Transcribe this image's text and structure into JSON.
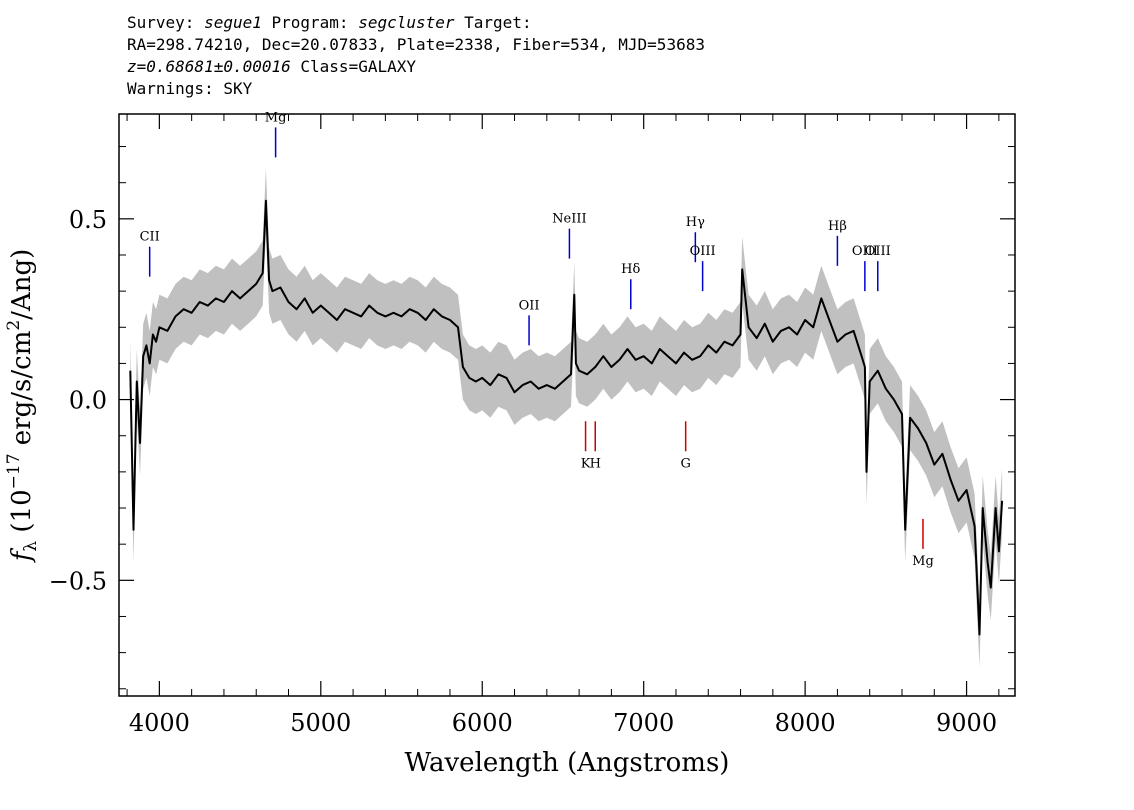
{
  "header": {
    "line1": {
      "survey_label": "Survey: ",
      "survey": "segue1",
      "program_label": " Program: ",
      "program": "segcluster",
      "target_label": " Target:"
    },
    "line2": "RA=298.74210, Dec=20.07833, Plate=2338, Fiber=534, MJD=53683",
    "line3": {
      "z": "z=0.68681±0.00016",
      "class": " Class=GALAXY"
    },
    "line4": "Warnings: SKY"
  },
  "colors": {
    "spectrum": "#000000",
    "error_band": "#c0c0c0",
    "emission_marker": "#0000cc",
    "absorption_marker": "#cc0000"
  },
  "chart_data": {
    "type": "line",
    "xlabel": "Wavelength (Angstroms)",
    "ylabel": "fλ (10⁻¹⁷ erg/s/cm²/Ang)",
    "xlim": [
      3750,
      9300
    ],
    "ylim": [
      -0.82,
      0.79
    ],
    "xticks": [
      4000,
      5000,
      6000,
      7000,
      8000,
      9000
    ],
    "yticks": [
      -0.5,
      0.0,
      0.5
    ],
    "ytick_labels": [
      "−0.5",
      "0.0",
      "0.5"
    ],
    "grid": false,
    "series": [
      {
        "role": "flux",
        "x": [
          3820,
          3840,
          3860,
          3880,
          3900,
          3920,
          3940,
          3960,
          3980,
          4000,
          4050,
          4100,
          4150,
          4200,
          4250,
          4300,
          4350,
          4400,
          4450,
          4500,
          4550,
          4600,
          4640,
          4660,
          4680,
          4700,
          4750,
          4800,
          4850,
          4900,
          4950,
          5000,
          5050,
          5100,
          5150,
          5200,
          5250,
          5300,
          5350,
          5400,
          5450,
          5500,
          5550,
          5600,
          5650,
          5700,
          5750,
          5800,
          5850,
          5880,
          5920,
          5960,
          6000,
          6050,
          6100,
          6150,
          6200,
          6250,
          6300,
          6350,
          6400,
          6450,
          6500,
          6550,
          6570,
          6580,
          6600,
          6650,
          6700,
          6750,
          6800,
          6850,
          6900,
          6950,
          7000,
          7050,
          7100,
          7150,
          7200,
          7250,
          7300,
          7350,
          7400,
          7450,
          7500,
          7550,
          7600,
          7610,
          7650,
          7700,
          7750,
          7800,
          7850,
          7900,
          7950,
          8000,
          8050,
          8100,
          8150,
          8200,
          8250,
          8300,
          8350,
          8370,
          8380,
          8400,
          8450,
          8500,
          8550,
          8600,
          8620,
          8650,
          8700,
          8750,
          8800,
          8850,
          8900,
          8950,
          9000,
          9050,
          9080,
          9100,
          9130,
          9150,
          9180,
          9200,
          9220
        ],
        "y": [
          0.08,
          -0.36,
          0.05,
          -0.12,
          0.12,
          0.15,
          0.1,
          0.18,
          0.16,
          0.2,
          0.19,
          0.23,
          0.25,
          0.24,
          0.27,
          0.26,
          0.28,
          0.27,
          0.3,
          0.28,
          0.3,
          0.32,
          0.35,
          0.55,
          0.33,
          0.3,
          0.31,
          0.27,
          0.25,
          0.28,
          0.24,
          0.26,
          0.24,
          0.22,
          0.25,
          0.24,
          0.23,
          0.26,
          0.24,
          0.23,
          0.24,
          0.23,
          0.25,
          0.24,
          0.22,
          0.25,
          0.23,
          0.22,
          0.2,
          0.09,
          0.06,
          0.05,
          0.06,
          0.04,
          0.07,
          0.06,
          0.02,
          0.04,
          0.05,
          0.03,
          0.04,
          0.03,
          0.05,
          0.07,
          0.29,
          0.1,
          0.08,
          0.07,
          0.09,
          0.12,
          0.09,
          0.11,
          0.14,
          0.11,
          0.12,
          0.1,
          0.14,
          0.12,
          0.1,
          0.13,
          0.11,
          0.12,
          0.15,
          0.13,
          0.16,
          0.15,
          0.18,
          0.36,
          0.2,
          0.17,
          0.21,
          0.16,
          0.19,
          0.2,
          0.18,
          0.22,
          0.2,
          0.28,
          0.22,
          0.16,
          0.18,
          0.19,
          0.12,
          0.09,
          -0.2,
          0.05,
          0.08,
          0.03,
          0.0,
          -0.04,
          -0.36,
          -0.05,
          -0.08,
          -0.12,
          -0.18,
          -0.15,
          -0.22,
          -0.28,
          -0.25,
          -0.35,
          -0.65,
          -0.3,
          -0.45,
          -0.52,
          -0.3,
          -0.42,
          -0.28
        ]
      }
    ],
    "error_band_half_width": 0.09,
    "lines": [
      {
        "label": "CII",
        "x": 3940,
        "y": 0.34,
        "type": "emission"
      },
      {
        "label": "Mg",
        "x": 4720,
        "y": 0.67,
        "type": "emission"
      },
      {
        "label": "OII",
        "x": 6290,
        "y": 0.15,
        "type": "emission"
      },
      {
        "label": "NeIII",
        "x": 6540,
        "y": 0.39,
        "type": "emission"
      },
      {
        "label": "Hδ",
        "x": 6920,
        "y": 0.25,
        "type": "emission"
      },
      {
        "label": "Hγ",
        "x": 7320,
        "y": 0.38,
        "type": "emission"
      },
      {
        "label": "OIII",
        "x": 7365,
        "y": 0.3,
        "type": "emission"
      },
      {
        "label": "Hβ",
        "x": 8200,
        "y": 0.37,
        "type": "emission"
      },
      {
        "label": "OIII",
        "x": 8370,
        "y": 0.3,
        "type": "emission"
      },
      {
        "label": "OIII",
        "x": 8450,
        "y": 0.3,
        "type": "emission"
      },
      {
        "label": "K",
        "x": 6640,
        "y": -0.06,
        "type": "absorption"
      },
      {
        "label": "H",
        "x": 6700,
        "y": -0.06,
        "type": "absorption"
      },
      {
        "label": "G",
        "x": 7260,
        "y": -0.06,
        "type": "absorption"
      },
      {
        "label": "Mg",
        "x": 8730,
        "y": -0.33,
        "type": "absorption"
      }
    ]
  }
}
